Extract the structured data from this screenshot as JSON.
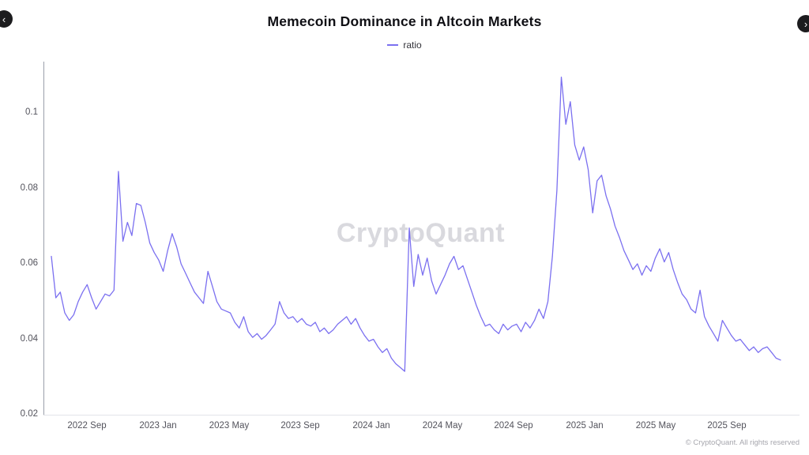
{
  "nav": {
    "prev_label": "‹",
    "next_label": "›"
  },
  "watermark": {
    "text": "CryptoQuant"
  },
  "footer": {
    "copyright": "© CryptoQuant. All rights reserved"
  },
  "chart_data": {
    "type": "line",
    "title": "Memecoin Dominance in Altcoin Markets",
    "xlabel": "",
    "ylabel": "",
    "grid": false,
    "legend_position": "top",
    "line_color": "#7b70f0",
    "legend": [
      {
        "name": "ratio",
        "color": "#7b70f0"
      }
    ],
    "ylim": [
      0.02,
      0.1136
    ],
    "y_ticks": [
      0.1,
      0.08,
      0.06,
      0.04,
      0.02
    ],
    "y_tick_labels": [
      "0.1",
      "0.08",
      "0.06",
      "0.04",
      "0.02"
    ],
    "x_tick_labels": [
      "2022 Sep",
      "2023 Jan",
      "2023 May",
      "2023 Sep",
      "2024 Jan",
      "2024 May",
      "2024 Sep",
      "2025 Jan",
      "2025 May",
      "2025 Sep"
    ],
    "x_tick_month_positions": [
      2,
      6,
      10,
      14,
      18,
      22,
      26,
      30,
      34,
      38
    ],
    "x_range": "2022 Jul – 2025 Nov",
    "series": [
      {
        "name": "ratio",
        "values": [
          0.062,
          0.051,
          0.0525,
          0.047,
          0.045,
          0.0465,
          0.05,
          0.0525,
          0.0545,
          0.051,
          0.048,
          0.05,
          0.052,
          0.0515,
          0.053,
          0.0845,
          0.066,
          0.071,
          0.0675,
          0.076,
          0.0755,
          0.071,
          0.0655,
          0.063,
          0.061,
          0.058,
          0.0635,
          0.068,
          0.0645,
          0.06,
          0.0575,
          0.055,
          0.0525,
          0.051,
          0.0495,
          0.058,
          0.054,
          0.05,
          0.048,
          0.0475,
          0.047,
          0.0445,
          0.043,
          0.046,
          0.042,
          0.0405,
          0.0415,
          0.04,
          0.041,
          0.0425,
          0.044,
          0.05,
          0.047,
          0.0455,
          0.046,
          0.0445,
          0.0455,
          0.044,
          0.0435,
          0.0445,
          0.042,
          0.043,
          0.0415,
          0.0425,
          0.044,
          0.045,
          0.046,
          0.044,
          0.0455,
          0.043,
          0.041,
          0.0395,
          0.04,
          0.038,
          0.0365,
          0.0375,
          0.035,
          0.0335,
          0.0325,
          0.0315,
          0.0695,
          0.054,
          0.0625,
          0.057,
          0.0615,
          0.0555,
          0.052,
          0.0545,
          0.057,
          0.06,
          0.062,
          0.0585,
          0.0595,
          0.056,
          0.0525,
          0.049,
          0.046,
          0.0435,
          0.044,
          0.0425,
          0.0415,
          0.044,
          0.0425,
          0.0435,
          0.044,
          0.042,
          0.0445,
          0.043,
          0.045,
          0.048,
          0.0455,
          0.05,
          0.062,
          0.0795,
          0.1095,
          0.097,
          0.103,
          0.0915,
          0.0875,
          0.091,
          0.085,
          0.0735,
          0.082,
          0.0835,
          0.078,
          0.0745,
          0.07,
          0.067,
          0.0635,
          0.061,
          0.0585,
          0.06,
          0.057,
          0.0595,
          0.058,
          0.0615,
          0.064,
          0.0605,
          0.063,
          0.0585,
          0.055,
          0.052,
          0.0505,
          0.048,
          0.047,
          0.053,
          0.046,
          0.0435,
          0.0415,
          0.0395,
          0.045,
          0.043,
          0.041,
          0.0395,
          0.04,
          0.0385,
          0.037,
          0.038,
          0.0365,
          0.0375,
          0.038,
          0.0365,
          0.035,
          0.0345
        ]
      }
    ]
  }
}
